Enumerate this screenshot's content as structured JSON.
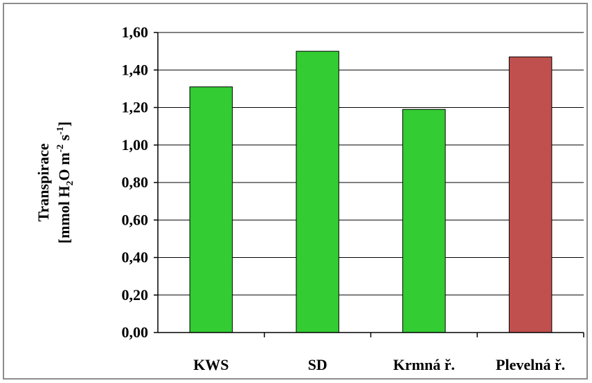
{
  "chart_data": {
    "type": "bar",
    "categories": [
      "KWS",
      "SD",
      "Krmná ř.",
      "Plevelná ř."
    ],
    "values": [
      1.31,
      1.5,
      1.19,
      1.47
    ],
    "bar_colors": [
      "#33cc33",
      "#33cc33",
      "#33cc33",
      "#c0504d"
    ],
    "ylim": [
      0,
      1.6
    ],
    "yticks": [
      "0,00",
      "0,20",
      "0,40",
      "0,60",
      "0,80",
      "1,00",
      "1,20",
      "1,40",
      "1,60"
    ],
    "ylabel_line1": "Transpirace",
    "ylabel_line2_parts": [
      "[mmol H",
      "2",
      "O m",
      "-2",
      " s",
      "-1",
      "]"
    ],
    "grid": true,
    "colors": {
      "gridline": "#000000",
      "bar_outline": "#000000"
    }
  }
}
